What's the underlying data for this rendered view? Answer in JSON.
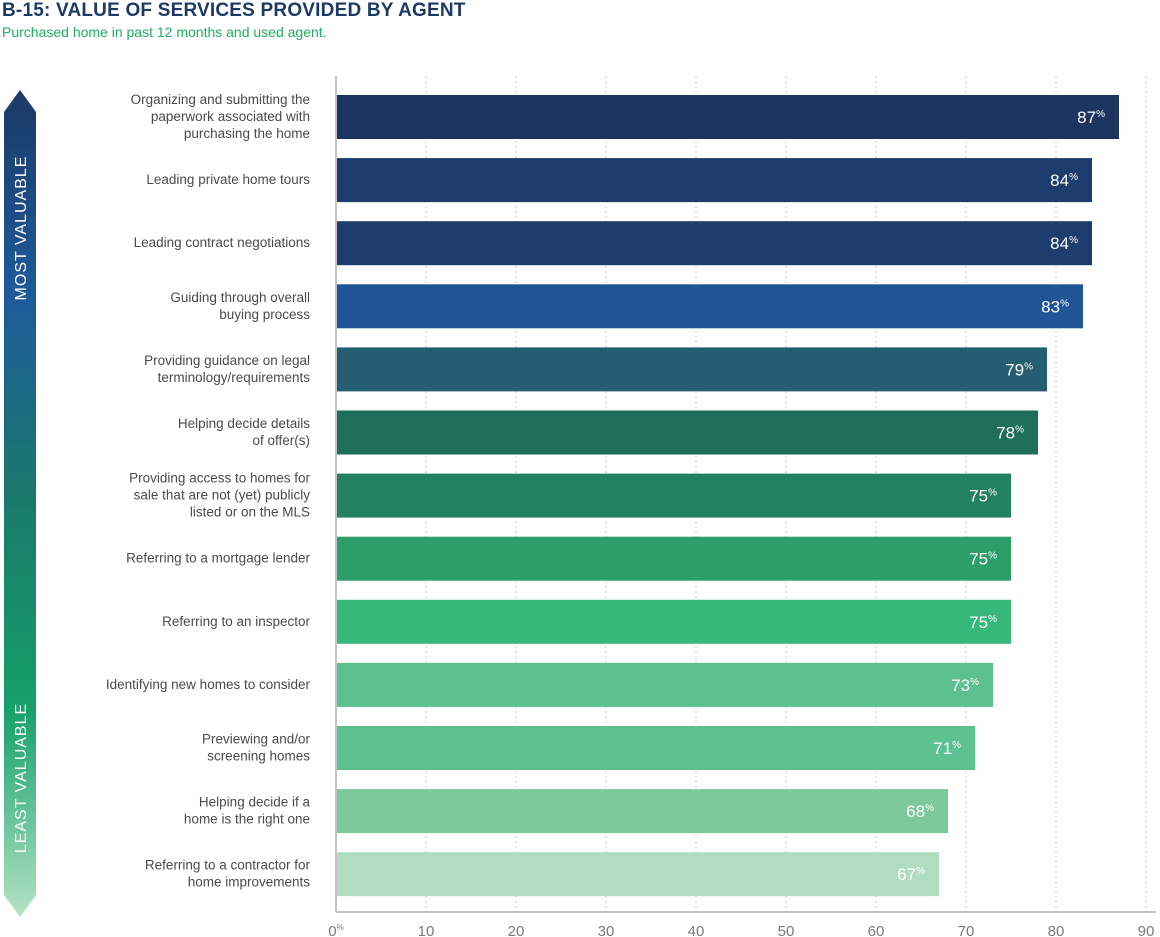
{
  "header": {
    "title": "B-15: VALUE OF SERVICES PROVIDED BY AGENT",
    "subtitle": "Purchased home in past 12 months and used agent."
  },
  "side_arrow": {
    "top_label": "MOST VALUABLE",
    "bottom_label": "LEAST VALUABLE",
    "gradient_colors": [
      "#1c3a66",
      "#1e5a9a",
      "#1a7a6a",
      "#16a06a",
      "#b5e3c6"
    ]
  },
  "chart_data": {
    "type": "bar",
    "orientation": "horizontal",
    "title": "B-15: VALUE OF SERVICES PROVIDED BY AGENT",
    "subtitle": "Purchased home in past 12 months and used agent.",
    "xlabel": "",
    "ylabel": "",
    "xlim": [
      0,
      90
    ],
    "x_ticks": [
      "0%",
      "10",
      "20",
      "30",
      "40",
      "50",
      "60",
      "70",
      "80",
      "90"
    ],
    "grid": "vertical dotted",
    "value_suffix": "%",
    "categories": [
      [
        "Organizing and submitting the",
        "paperwork associated with",
        "purchasing the home"
      ],
      [
        "Leading private home tours"
      ],
      [
        "Leading contract negotiations"
      ],
      [
        "Guiding through overall",
        "buying process"
      ],
      [
        "Providing guidance on legal",
        "terminology/requirements"
      ],
      [
        "Helping decide details",
        "of offer(s)"
      ],
      [
        "Providing access to homes for",
        "sale that are not (yet) publicly",
        "listed or on the MLS"
      ],
      [
        "Referring to a mortgage lender"
      ],
      [
        "Referring to an inspector"
      ],
      [
        "Identifying new homes to consider"
      ],
      [
        "Previewing and/or",
        "screening homes"
      ],
      [
        "Helping decide if a",
        "home is the right one"
      ],
      [
        "Referring to a contractor for",
        "home improvements"
      ]
    ],
    "values": [
      87,
      84,
      84,
      83,
      79,
      78,
      75,
      75,
      75,
      73,
      71,
      68,
      67
    ],
    "bar_colors": [
      "#1c3560",
      "#1c3d6e",
      "#1c3d6e",
      "#1f5596",
      "#245e70",
      "#1f6e5a",
      "#238060",
      "#2e9e68",
      "#36b87b",
      "#5bbf8e",
      "#5ec190",
      "#7ec99b",
      "#b0dcc0"
    ]
  }
}
